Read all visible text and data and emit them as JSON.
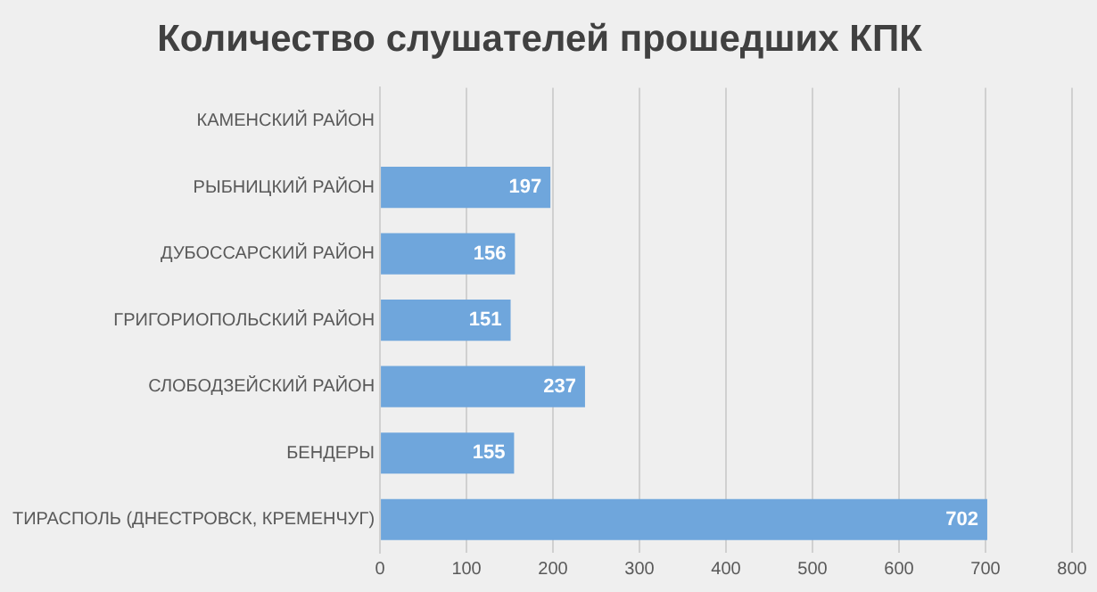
{
  "chart_data": {
    "type": "bar",
    "orientation": "horizontal",
    "title": "Количество слушателей прошедших КПК",
    "categories": [
      "КАМЕНСКИЙ РАЙОН",
      "РЫБНИЦКИЙ РАЙОН",
      "ДУБОССАРСКИЙ РАЙОН",
      "ГРИГОРИОПОЛЬСКИЙ РАЙОН",
      "СЛОБОДЗЕЙСКИЙ РАЙОН",
      "БЕНДЕРЫ",
      "ТИРАСПОЛЬ (ДНЕСТРОВСК, КРЕМЕНЧУГ)"
    ],
    "values": [
      null,
      197,
      156,
      151,
      237,
      155,
      702
    ],
    "color": "#6fa6dc",
    "xlim": [
      0,
      800
    ],
    "xticks": [
      0,
      100,
      200,
      300,
      400,
      500,
      600,
      700,
      800
    ],
    "grid": "x",
    "legend": false,
    "data_labels": true
  }
}
